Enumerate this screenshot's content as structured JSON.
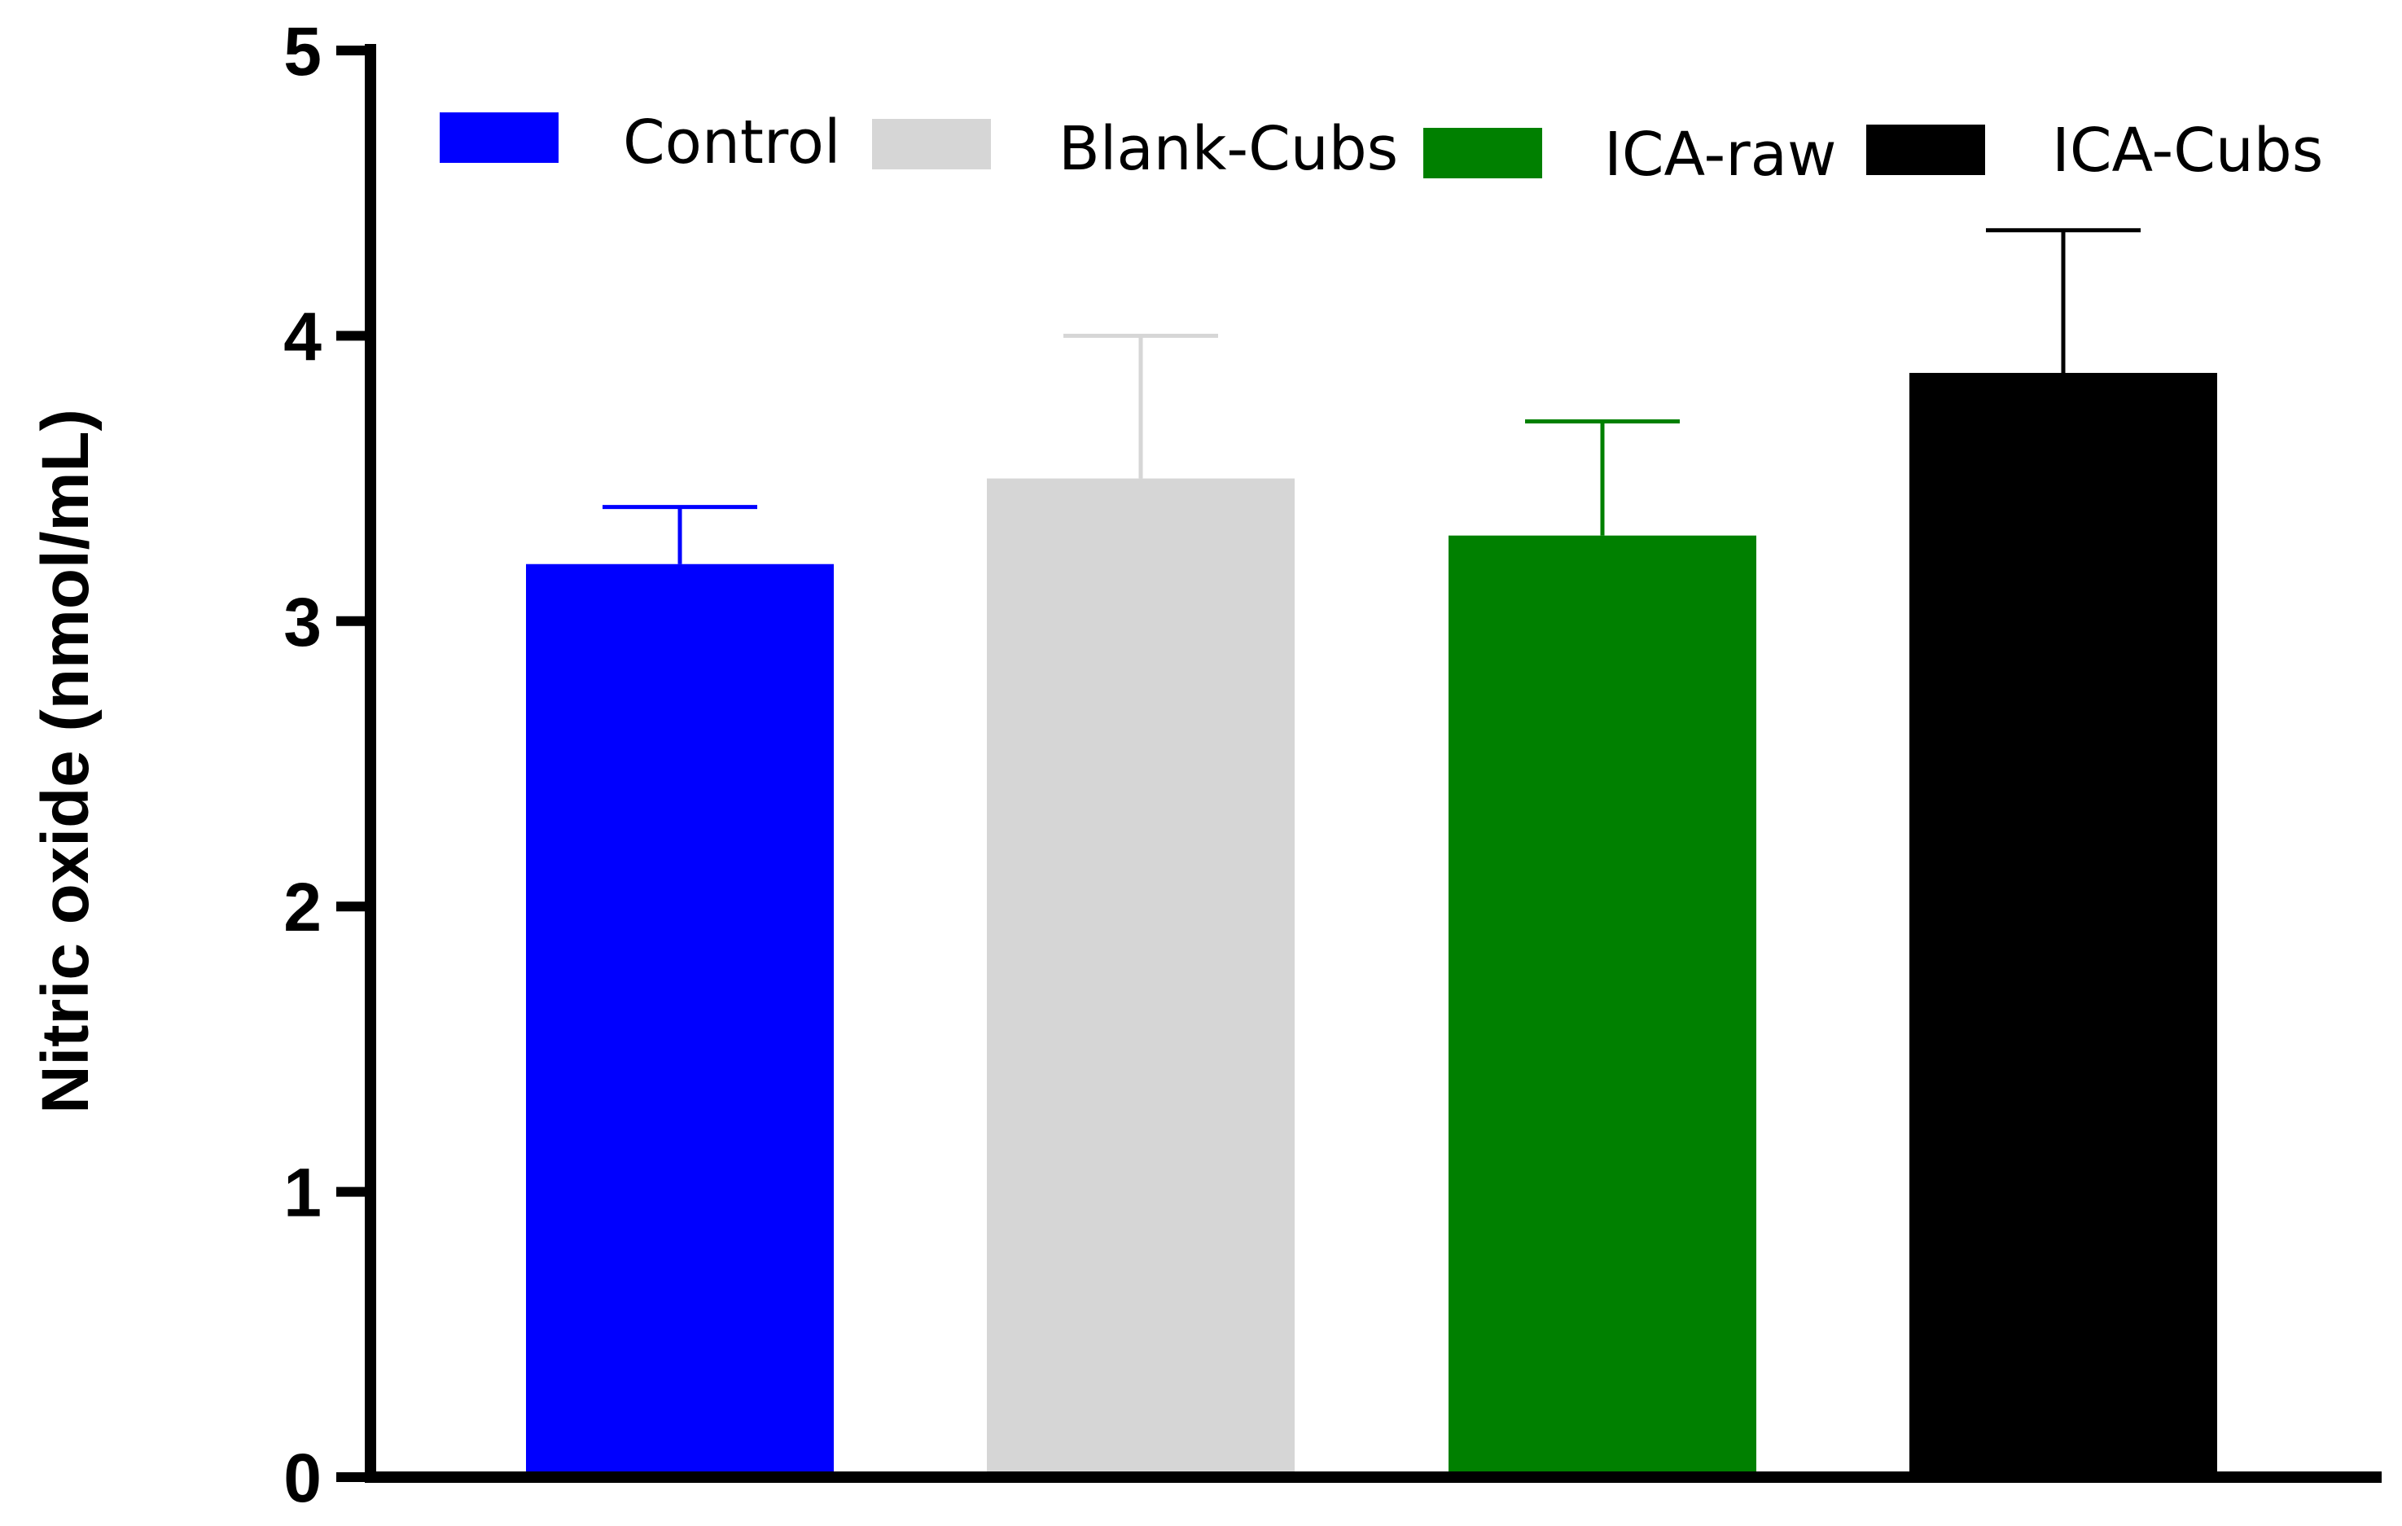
{
  "chart_data": {
    "type": "bar",
    "title": "",
    "xlabel": "",
    "ylabel": "Nitric oxide (nmol/mL)",
    "ylim": [
      0,
      5
    ],
    "yticks": [
      0,
      1,
      2,
      3,
      4,
      5
    ],
    "grid": false,
    "legend_position": "top",
    "categories": [
      "Control",
      "Blank-Cubs",
      "ICA-raw",
      "ICA-Cubs"
    ],
    "values": [
      3.2,
      3.5,
      3.3,
      3.87
    ],
    "error_upper": [
      3.4,
      4.0,
      3.7,
      4.37
    ],
    "colors": [
      "#0000ff",
      "#d6d6d6",
      "#008000",
      "#000000"
    ],
    "legend": [
      "Control",
      "Blank-Cubs",
      "ICA-raw",
      "ICA-Cubs"
    ]
  }
}
